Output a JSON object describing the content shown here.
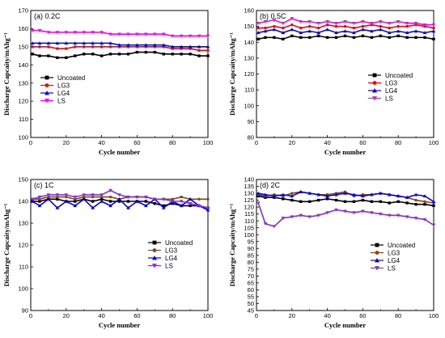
{
  "chart_data": [
    {
      "type": "scatter",
      "title": "(a) 0.2C",
      "xlabel": "Cycle number",
      "ylabel": "Discharge Capcaity/mAhg⁻¹",
      "xlim": [
        0,
        100
      ],
      "ylim": [
        100,
        170
      ],
      "xticks": [
        "0",
        "20",
        "40",
        "60",
        "80",
        "100"
      ],
      "yticks": [
        "100",
        "110",
        "120",
        "130",
        "140",
        "150",
        "160",
        "170"
      ],
      "legend": "center-left",
      "series": [
        {
          "name": "Uncoated",
          "color": "#000000",
          "marker": "square",
          "x": [
            1,
            5,
            10,
            15,
            20,
            25,
            30,
            35,
            40,
            45,
            50,
            55,
            60,
            65,
            70,
            75,
            80,
            85,
            90,
            95,
            100
          ],
          "y": [
            146,
            145,
            145,
            144,
            144,
            145,
            146,
            146,
            145,
            146,
            146,
            146,
            147,
            147,
            147,
            146,
            146,
            146,
            146,
            145,
            145
          ]
        },
        {
          "name": "LG3",
          "color": "#ff0000",
          "marker": "circle",
          "x": [
            1,
            5,
            10,
            15,
            20,
            25,
            30,
            35,
            40,
            45,
            50,
            55,
            60,
            65,
            70,
            75,
            80,
            85,
            90,
            95,
            100
          ],
          "y": [
            150,
            150,
            150,
            149,
            149,
            150,
            150,
            150,
            150,
            150,
            150,
            150,
            150,
            150,
            150,
            150,
            149,
            149,
            149,
            148,
            148
          ]
        },
        {
          "name": "LG4",
          "color": "#0000ff",
          "marker": "triangle-up",
          "x": [
            1,
            5,
            10,
            15,
            20,
            25,
            30,
            35,
            40,
            45,
            50,
            55,
            60,
            65,
            70,
            75,
            80,
            85,
            90,
            95,
            100
          ],
          "y": [
            152,
            152,
            152,
            152,
            152,
            152,
            152,
            152,
            152,
            152,
            151,
            151,
            151,
            151,
            151,
            151,
            150,
            150,
            150,
            150,
            150
          ]
        },
        {
          "name": "LS",
          "color": "#ff00ff",
          "marker": "triangle-down",
          "x": [
            1,
            5,
            10,
            15,
            20,
            25,
            30,
            35,
            40,
            45,
            50,
            55,
            60,
            65,
            70,
            75,
            80,
            85,
            90,
            95,
            100
          ],
          "y": [
            159,
            159,
            158,
            158,
            158,
            158,
            158,
            158,
            158,
            157,
            157,
            157,
            157,
            157,
            157,
            157,
            156,
            156,
            156,
            156,
            156
          ]
        }
      ]
    },
    {
      "type": "scatter",
      "title": "(b) 0.5C",
      "xlabel": "Cycle number",
      "ylabel": "Discharge Capcaity/mAhg⁻¹",
      "xlim": [
        0,
        100
      ],
      "ylim": [
        80,
        160
      ],
      "xticks": [
        "0",
        "20",
        "40",
        "60",
        "80",
        "100"
      ],
      "yticks": [
        "80",
        "90",
        "100",
        "110",
        "120",
        "130",
        "140",
        "150",
        "160"
      ],
      "legend": "center-right",
      "series": [
        {
          "name": "Uncoated",
          "color": "#000000",
          "marker": "square",
          "x": [
            1,
            5,
            10,
            15,
            20,
            25,
            30,
            35,
            40,
            45,
            50,
            55,
            60,
            65,
            70,
            75,
            80,
            85,
            90,
            95,
            100
          ],
          "y": [
            142,
            143,
            143,
            142,
            144,
            143,
            143,
            144,
            143,
            143,
            144,
            143,
            144,
            143,
            144,
            143,
            144,
            143,
            143,
            143,
            142
          ]
        },
        {
          "name": "LG3",
          "color": "#ff0000",
          "marker": "circle",
          "x": [
            1,
            5,
            10,
            15,
            20,
            25,
            30,
            35,
            40,
            45,
            50,
            55,
            60,
            65,
            70,
            75,
            80,
            85,
            90,
            95,
            100
          ],
          "y": [
            149,
            149,
            150,
            149,
            151,
            149,
            150,
            149,
            151,
            150,
            150,
            149,
            150,
            151,
            150,
            149,
            150,
            150,
            151,
            150,
            149
          ]
        },
        {
          "name": "LG4",
          "color": "#0000ff",
          "marker": "triangle-up",
          "x": [
            1,
            5,
            10,
            15,
            20,
            25,
            30,
            35,
            40,
            45,
            50,
            55,
            60,
            65,
            70,
            75,
            80,
            85,
            90,
            95,
            100
          ],
          "y": [
            146,
            147,
            148,
            146,
            148,
            146,
            147,
            146,
            148,
            146,
            147,
            146,
            148,
            147,
            148,
            146,
            147,
            146,
            147,
            146,
            147
          ]
        },
        {
          "name": "LS",
          "color": "#ff00ff",
          "marker": "triangle-down",
          "x": [
            1,
            5,
            10,
            15,
            20,
            25,
            30,
            35,
            40,
            45,
            50,
            55,
            60,
            65,
            70,
            75,
            80,
            85,
            90,
            95,
            100
          ],
          "y": [
            152,
            153,
            154,
            152,
            155,
            153,
            153,
            152,
            153,
            152,
            153,
            152,
            153,
            152,
            153,
            152,
            153,
            152,
            152,
            151,
            151
          ]
        }
      ]
    },
    {
      "type": "scatter",
      "title": "(c) 1C",
      "xlabel": "Cycle number",
      "ylabel": "Discharge Capcaity/mAhg⁻¹",
      "xlim": [
        0,
        100
      ],
      "ylim": [
        90,
        150
      ],
      "xticks": [
        "0",
        "20",
        "40",
        "60",
        "80",
        "100"
      ],
      "yticks": [
        "90",
        "100",
        "110",
        "120",
        "130",
        "140",
        "150"
      ],
      "legend": "bottom-right",
      "series": [
        {
          "name": "Uncoated",
          "color": "#000000",
          "marker": "square",
          "x": [
            1,
            5,
            10,
            15,
            20,
            25,
            30,
            35,
            40,
            45,
            50,
            55,
            60,
            65,
            70,
            75,
            80,
            85,
            90,
            95,
            100
          ],
          "y": [
            140,
            140,
            141,
            141,
            140,
            140,
            141,
            140,
            141,
            140,
            140,
            140,
            140,
            140,
            139,
            138,
            139,
            138,
            138,
            138,
            137
          ]
        },
        {
          "name": "LG3",
          "color": "#8b4513",
          "marker": "circle",
          "x": [
            1,
            5,
            10,
            15,
            20,
            25,
            30,
            35,
            40,
            45,
            50,
            55,
            60,
            65,
            70,
            75,
            80,
            85,
            90,
            95,
            100
          ],
          "y": [
            141,
            141,
            142,
            142,
            142,
            141,
            142,
            142,
            142,
            142,
            141,
            142,
            142,
            142,
            141,
            141,
            141,
            142,
            141,
            141,
            141
          ]
        },
        {
          "name": "LG4",
          "color": "#0000ff",
          "marker": "triangle-up",
          "x": [
            1,
            5,
            10,
            15,
            20,
            25,
            30,
            35,
            40,
            45,
            50,
            55,
            60,
            65,
            70,
            75,
            80,
            85,
            90,
            95,
            100
          ],
          "y": [
            140,
            138,
            141,
            137,
            140,
            138,
            141,
            137,
            140,
            138,
            141,
            137,
            140,
            138,
            141,
            137,
            140,
            138,
            141,
            138,
            136
          ]
        },
        {
          "name": "LS",
          "color": "#8a2be2",
          "marker": "triangle-down",
          "x": [
            1,
            5,
            10,
            15,
            20,
            25,
            30,
            35,
            40,
            45,
            50,
            55,
            60,
            65,
            70,
            75,
            80,
            85,
            90,
            95,
            100
          ],
          "y": [
            141,
            142,
            143,
            143,
            143,
            142,
            143,
            143,
            143,
            145,
            143,
            142,
            142,
            142,
            141,
            141,
            140,
            140,
            139,
            138,
            137
          ]
        }
      ]
    },
    {
      "type": "scatter",
      "title": "(d) 2C",
      "xlabel": "Cycle number",
      "ylabel": "Discharge Capcaity/mAhg⁻¹",
      "xlim": [
        0,
        100
      ],
      "ylim": [
        45,
        140
      ],
      "xticks": [
        "0",
        "20",
        "40",
        "60",
        "80",
        "100"
      ],
      "yticks": [
        "45",
        "50",
        "55",
        "60",
        "65",
        "70",
        "75",
        "80",
        "85",
        "90",
        "95",
        "100",
        "105",
        "110",
        "115",
        "120",
        "125",
        "130",
        "135",
        "140"
      ],
      "legend": "bottom-right",
      "series": [
        {
          "name": "Uncoated",
          "color": "#000000",
          "marker": "square",
          "x": [
            1,
            5,
            10,
            15,
            20,
            25,
            30,
            35,
            40,
            45,
            50,
            55,
            60,
            65,
            70,
            75,
            80,
            85,
            90,
            95,
            100
          ],
          "y": [
            128,
            127,
            127,
            126,
            125,
            124,
            124,
            125,
            126,
            125,
            124,
            124,
            125,
            124,
            124,
            123,
            124,
            123,
            122,
            122,
            121
          ]
        },
        {
          "name": "LG3",
          "color": "#8b4513",
          "marker": "circle",
          "x": [
            1,
            5,
            10,
            15,
            20,
            25,
            30,
            35,
            40,
            45,
            50,
            55,
            60,
            65,
            70,
            75,
            80,
            85,
            90,
            95,
            100
          ],
          "y": [
            129,
            128,
            129,
            128,
            130,
            131,
            130,
            129,
            129,
            130,
            131,
            128,
            129,
            129,
            130,
            129,
            128,
            127,
            125,
            124,
            123
          ]
        },
        {
          "name": "LG4",
          "color": "#0000ff",
          "marker": "triangle-up",
          "x": [
            1,
            5,
            10,
            15,
            20,
            25,
            30,
            35,
            40,
            45,
            50,
            55,
            60,
            65,
            70,
            75,
            80,
            85,
            90,
            95,
            100
          ],
          "y": [
            130,
            129,
            128,
            129,
            128,
            131,
            130,
            129,
            128,
            129,
            130,
            129,
            128,
            129,
            130,
            129,
            128,
            127,
            129,
            128,
            124
          ]
        },
        {
          "name": "LS",
          "color": "#8a2be2",
          "marker": "triangle-down",
          "x": [
            1,
            5,
            10,
            15,
            20,
            25,
            30,
            35,
            40,
            45,
            50,
            55,
            60,
            65,
            70,
            75,
            80,
            85,
            90,
            95,
            100
          ],
          "y": [
            123,
            108,
            106,
            112,
            113,
            114,
            113,
            114,
            116,
            118,
            117,
            116,
            117,
            116,
            115,
            114,
            114,
            113,
            112,
            111,
            107
          ]
        }
      ]
    }
  ]
}
